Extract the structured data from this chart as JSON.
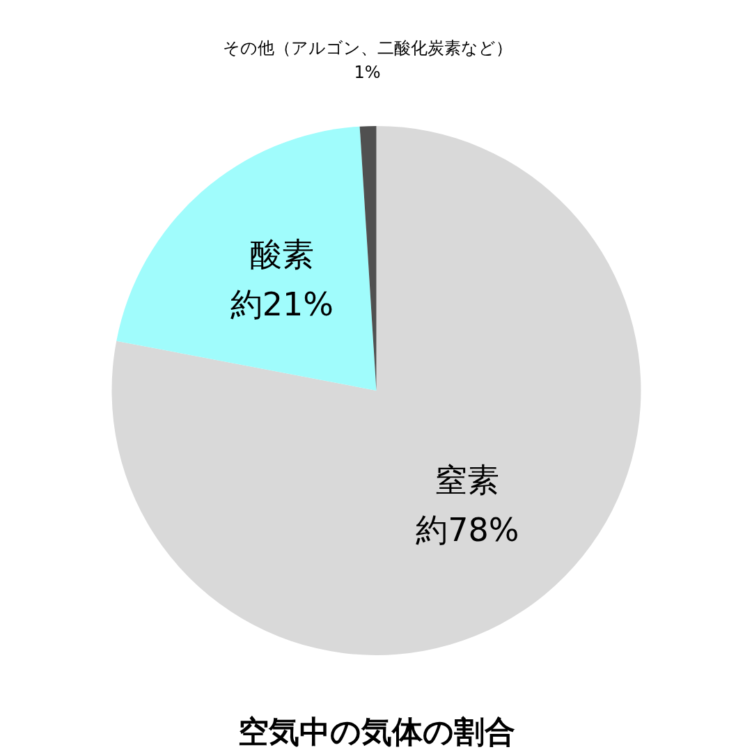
{
  "chart_data": {
    "type": "pie",
    "title": "空気中の気体の割合",
    "categories": [
      "窒素",
      "酸素",
      "その他（アルゴン、二酸化炭素など）"
    ],
    "values": [
      78,
      21,
      1
    ],
    "value_labels": [
      "約78%",
      "約21%",
      "1%"
    ],
    "colors": [
      "#d9d9d9",
      "#a0fcfc",
      "#505050"
    ]
  }
}
